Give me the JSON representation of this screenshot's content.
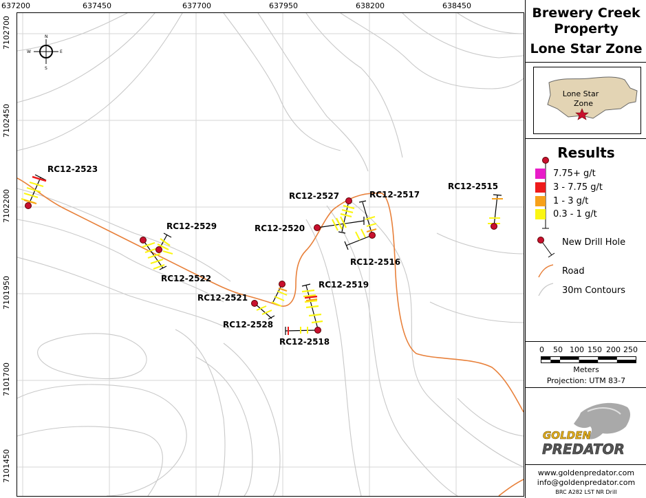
{
  "map": {
    "x_ticks": [
      "637200",
      "637450",
      "637700",
      "637950",
      "638200",
      "638450"
    ],
    "y_ticks": [
      "7102700",
      "7102450",
      "7102200",
      "7101950",
      "7101700",
      "7101450"
    ],
    "compass": {
      "n": "N",
      "s": "S",
      "e": "E",
      "w": "W"
    },
    "drill_holes": [
      {
        "id": "RC12-2523"
      },
      {
        "id": "RC12-2529"
      },
      {
        "id": "RC12-2522"
      },
      {
        "id": "RC12-2521"
      },
      {
        "id": "RC12-2528"
      },
      {
        "id": "RC12-2519"
      },
      {
        "id": "RC12-2518"
      },
      {
        "id": "RC12-2520"
      },
      {
        "id": "RC12-2527"
      },
      {
        "id": "RC12-2517"
      },
      {
        "id": "RC12-2516"
      },
      {
        "id": "RC12-2515"
      }
    ]
  },
  "panel": {
    "title_line1": "Brewery Creek",
    "title_line2": "Property",
    "title_line3": "Lone Star Zone",
    "inset_label_line1": "Lone Star",
    "inset_label_line2": "Zone",
    "results_title": "Results",
    "legend": [
      {
        "label": "7.75+ g/t",
        "color": "#e81cc8"
      },
      {
        "label": "3 - 7.75 g/t",
        "color": "#ee1b1b"
      },
      {
        "label": "1 - 3 g/t",
        "color": "#f7a11a"
      },
      {
        "label": "0.3 - 1 g/t",
        "color": "#fbf613"
      }
    ],
    "legend_new_drill_hole": "New Drill Hole",
    "legend_road": "Road",
    "legend_contours": "30m Contours",
    "scale_labels": [
      "0",
      "50",
      "100",
      "150",
      "200",
      "250"
    ],
    "scale_unit": "Meters",
    "projection": "Projection:  UTM 83-7",
    "logo_line1": "GOLDEN",
    "logo_line2": "PREDATOR",
    "website": "www.goldenpredator.com",
    "email": "info@goldenpredator.com",
    "doc_id": "BRC A282 LST NR Drill"
  },
  "colors": {
    "road": "#e8803a",
    "contour": "#c9c9c9",
    "grid": "#d0d0d0",
    "hole": "#c8102e",
    "inset_fill": "#e3d4b4"
  }
}
